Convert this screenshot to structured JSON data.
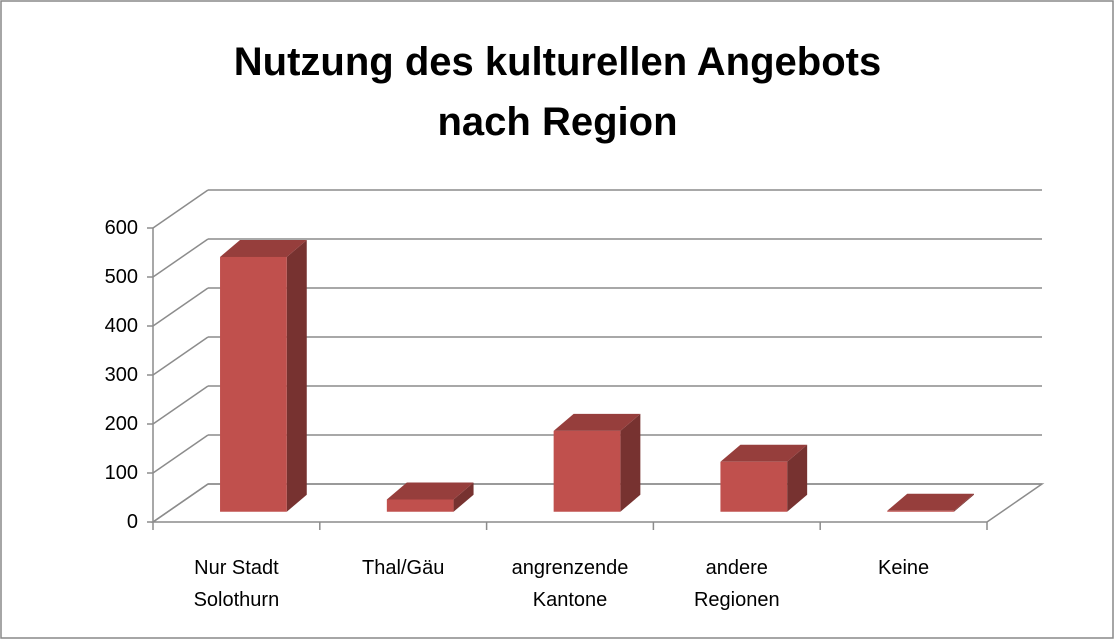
{
  "chart_data": {
    "type": "bar3d",
    "title": "Nutzung des kulturellen Angebots\nnach Region",
    "categories": [
      "Nur Stadt\nSolothurn",
      "Thal/Gäu",
      "angrenzende\nKantone",
      "andere\nRegionen",
      "Keine"
    ],
    "values": [
      520,
      25,
      165,
      102,
      2
    ],
    "color": "#c0504d",
    "ylim": [
      0,
      600
    ],
    "yticks": [
      0,
      100,
      200,
      300,
      400,
      500,
      600
    ],
    "grid": true
  }
}
